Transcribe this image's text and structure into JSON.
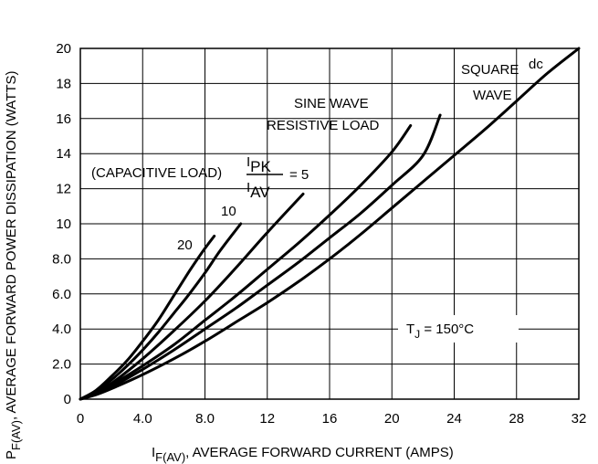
{
  "chart_data": {
    "type": "line",
    "x_axis": {
      "label_main": "I",
      "label_sub": "F(AV)",
      "label_rest": ", AVERAGE FORWARD CURRENT (AMPS)",
      "range": [
        0,
        32
      ],
      "ticks": [
        0,
        4,
        8,
        12,
        16,
        20,
        24,
        28,
        32
      ],
      "tick_labels": [
        "0",
        "4.0",
        "8.0",
        "12",
        "16",
        "20",
        "24",
        "28",
        "32"
      ]
    },
    "y_axis": {
      "label_main": "P",
      "label_sub": "F(AV)",
      "label_rest": ", AVERAGE FORWARD POWER DISSIPATION (WATTS)",
      "range": [
        0,
        20
      ],
      "ticks": [
        0,
        2,
        4,
        6,
        8,
        10,
        12,
        14,
        16,
        18,
        20
      ],
      "tick_labels": [
        "0",
        "2.0",
        "4.0",
        "6.0",
        "8.0",
        "10",
        "12",
        "14",
        "16",
        "18",
        "20"
      ]
    },
    "grid": true,
    "series": [
      {
        "name": "20",
        "points": [
          [
            0,
            0
          ],
          [
            1,
            0.5
          ],
          [
            2,
            1.3
          ],
          [
            3,
            2.2
          ],
          [
            4,
            3.3
          ],
          [
            5,
            4.5
          ],
          [
            6,
            5.9
          ],
          [
            7,
            7.3
          ],
          [
            8,
            8.6
          ],
          [
            8.6,
            9.3
          ]
        ]
      },
      {
        "name": "10",
        "points": [
          [
            0,
            0
          ],
          [
            1,
            0.4
          ],
          [
            2,
            1.1
          ],
          [
            3,
            1.9
          ],
          [
            4,
            2.8
          ],
          [
            5,
            3.8
          ],
          [
            6,
            4.9
          ],
          [
            7,
            6.0
          ],
          [
            8,
            7.2
          ],
          [
            9,
            8.5
          ],
          [
            10.3,
            10.0
          ]
        ]
      },
      {
        "name": "5",
        "points": [
          [
            0,
            0
          ],
          [
            1,
            0.35
          ],
          [
            2,
            0.9
          ],
          [
            4,
            2.3
          ],
          [
            6,
            3.9
          ],
          [
            8,
            5.6
          ],
          [
            10,
            7.5
          ],
          [
            12,
            9.5
          ],
          [
            14.3,
            11.7
          ]
        ]
      },
      {
        "name": "SINE WAVE RESISTIVE LOAD",
        "points": [
          [
            0,
            0
          ],
          [
            1,
            0.3
          ],
          [
            2,
            0.8
          ],
          [
            4,
            1.9
          ],
          [
            6,
            3.1
          ],
          [
            8,
            4.5
          ],
          [
            10,
            5.9
          ],
          [
            12,
            7.4
          ],
          [
            14,
            8.9
          ],
          [
            16,
            10.5
          ],
          [
            18,
            12.2
          ],
          [
            20,
            14.1
          ],
          [
            21.2,
            15.6
          ]
        ]
      },
      {
        "name": "SQUARE WAVE",
        "points": [
          [
            0,
            0
          ],
          [
            1,
            0.3
          ],
          [
            2,
            0.7
          ],
          [
            4,
            1.7
          ],
          [
            6,
            2.8
          ],
          [
            8,
            4.0
          ],
          [
            10,
            5.2
          ],
          [
            12,
            6.5
          ],
          [
            14,
            7.8
          ],
          [
            16,
            9.2
          ],
          [
            18,
            10.6
          ],
          [
            20,
            12.2
          ],
          [
            22,
            13.9
          ],
          [
            23.1,
            16.2
          ]
        ]
      },
      {
        "name": "dc",
        "points": [
          [
            0,
            0
          ],
          [
            1,
            0.25
          ],
          [
            2,
            0.6
          ],
          [
            4,
            1.4
          ],
          [
            6,
            2.3
          ],
          [
            8,
            3.3
          ],
          [
            10,
            4.4
          ],
          [
            12,
            5.5
          ],
          [
            14,
            6.7
          ],
          [
            16,
            8.0
          ],
          [
            18,
            9.4
          ],
          [
            20,
            10.9
          ],
          [
            22,
            12.4
          ],
          [
            24,
            13.9
          ],
          [
            26,
            15.4
          ],
          [
            28,
            17.0
          ],
          [
            30,
            18.6
          ],
          [
            32,
            20.0
          ]
        ]
      }
    ],
    "annotations": {
      "sine_line1": "SINE WAVE",
      "sine_line2": "RESISTIVE LOAD",
      "square_line1": "SQUARE",
      "square_line2": "WAVE",
      "dc": "dc",
      "lbl_20": "20",
      "lbl_10": "10",
      "cap_prefix": "(CAPACITIVE  LOAD)",
      "frac_num": "I",
      "frac_num_sub": "PK",
      "frac_den": "I",
      "frac_den_sub": "AV",
      "frac_eq": "= 5",
      "tj_main": "T",
      "tj_sub": "J",
      "tj_rest": " = 150°C"
    }
  }
}
